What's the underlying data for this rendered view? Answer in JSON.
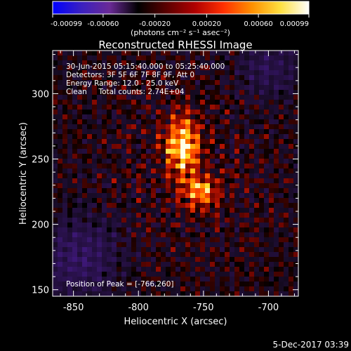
{
  "colorbar": {
    "ticks": [
      "-0.00099",
      "-0.00060",
      "-0.00020",
      "0.00020",
      "0.00060",
      "0.00099"
    ],
    "unit_label": "(photons cm⁻² s⁻¹ asec⁻²)",
    "colors": [
      "#0000ff",
      "#3a20c0",
      "#6a2a96",
      "#000000",
      "#5a0000",
      "#b00000",
      "#ff3000",
      "#ff9000",
      "#ffe040",
      "#ffffff"
    ]
  },
  "chart_data": {
    "type": "heatmap",
    "title": "Reconstructed RHESSI Image",
    "xlabel": "Heliocentric X (arcsec)",
    "ylabel": "Heliocentric Y (arcsec)",
    "xlim": [
      -866,
      -677
    ],
    "ylim": [
      145,
      333
    ],
    "xticks": [
      -850,
      -800,
      -750,
      -700
    ],
    "xtick_labels": [
      "-850",
      "-800",
      "-750",
      "-700"
    ],
    "yticks": [
      150,
      200,
      250,
      300
    ],
    "ytick_labels": [
      "150",
      "200",
      "250",
      "300"
    ],
    "value_range": [
      -0.00099,
      0.00099
    ],
    "sources": [
      {
        "x": -766,
        "y": 260,
        "amplitude": 0.00099
      },
      {
        "x": -752,
        "y": 225,
        "amplitude": 0.00072
      }
    ],
    "peak": [
      -766,
      260
    ],
    "annotations": [
      "30-Jun-2015 05:15:40.000 to 05:25:40.000",
      "Detectors: 3F 5F 6F 7F 8F 9F, Att 0",
      "Energy Range: 12.0 - 25.0 keV",
      "Clean     Total counts: 2.74E+04",
      "Position of Peak = [-766,260]"
    ]
  },
  "footer": {
    "timestamp": "5-Dec-2017 03:39"
  }
}
